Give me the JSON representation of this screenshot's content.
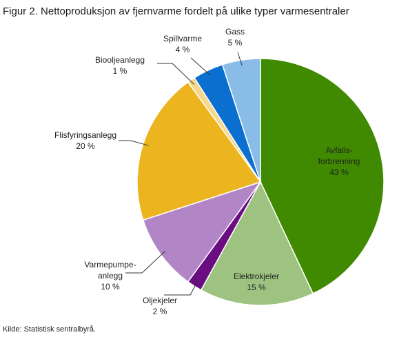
{
  "title": "Figur 2. Nettoproduksjon av fjernvarme fordelt på ulike typer varmesentraler",
  "source": "Kilde: Statistisk sentralbyrå.",
  "chart_data": {
    "type": "pie",
    "unit": "%",
    "slices": [
      {
        "label_lines": [
          "Avfalls-",
          "forbrenning"
        ],
        "value": 43,
        "value_label": "43 %",
        "color": "#3f8a00"
      },
      {
        "label_lines": [
          "Elektrokjeler"
        ],
        "value": 15,
        "value_label": "15 %",
        "color": "#9ec380"
      },
      {
        "label_lines": [
          "Oljekjeler"
        ],
        "value": 2,
        "value_label": "2 %",
        "color": "#6a0d83"
      },
      {
        "label_lines": [
          "Varmepumpe-",
          "anlegg"
        ],
        "value": 10,
        "value_label": "10 %",
        "color": "#b285c6"
      },
      {
        "label_lines": [
          "Flisfyringsanlegg"
        ],
        "value": 20,
        "value_label": "20 %",
        "color": "#ecb41f"
      },
      {
        "label_lines": [
          "Biooljeanlegg"
        ],
        "value": 1,
        "value_label": "1 %",
        "color": "#f6d88c"
      },
      {
        "label_lines": [
          "Spillvarme"
        ],
        "value": 4,
        "value_label": "4 %",
        "color": "#0b6fd0"
      },
      {
        "label_lines": [
          "Gass"
        ],
        "value": 5,
        "value_label": "5 %",
        "color": "#89bde8"
      }
    ]
  }
}
